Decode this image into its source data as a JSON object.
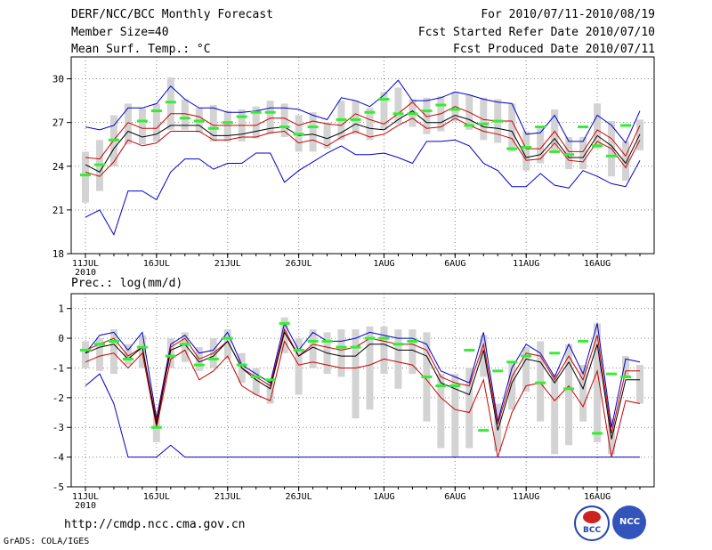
{
  "header": {
    "title": "DERF/NCC/BCC Monthly Forecast",
    "member_size": "Member Size=40",
    "variable": "Mean Surf. Temp.: °C",
    "period": "For 2010/07/11-2010/08/19",
    "started": "Fcst Started Refer Date 2010/07/10",
    "produced": "Fcst Produced Date 2010/07/11"
  },
  "footer": {
    "url": "http://cmdp.ncc.cma.gov.cn",
    "grads": "GrADS: COLA/IGES",
    "logo_bcc": "BCC",
    "logo_ncc": "NCC"
  },
  "colors": {
    "max_line": "#0000cc",
    "min_line": "#0000cc",
    "upper_line": "#cc0000",
    "lower_line": "#cc0000",
    "mean_line": "#000000",
    "observed": "#33ee33",
    "spread_bar": "#d3d3d3"
  },
  "chart_data": [
    {
      "type": "line",
      "title": "Mean Surf. Temp.: °C",
      "x": [
        1,
        2,
        3,
        4,
        5,
        6,
        7,
        8,
        9,
        10,
        11,
        12,
        13,
        14,
        15,
        16,
        17,
        18,
        19,
        20,
        21,
        22,
        23,
        24,
        25,
        26,
        27,
        28,
        29,
        30,
        31,
        32,
        33,
        34,
        35,
        36,
        37,
        38,
        39,
        40
      ],
      "xticks": [
        {
          "day": 1,
          "label": "11JUL",
          "sub": "2010"
        },
        {
          "day": 6,
          "label": "16JUL"
        },
        {
          "day": 11,
          "label": "21JUL"
        },
        {
          "day": 16,
          "label": "26JUL"
        },
        {
          "day": 22,
          "label": "1AUG"
        },
        {
          "day": 27,
          "label": "6AUG"
        },
        {
          "day": 32,
          "label": "11AUG"
        },
        {
          "day": 37,
          "label": "16AUG"
        }
      ],
      "ylim": [
        18,
        31.5
      ],
      "yticks": [
        18,
        21,
        24,
        27,
        30
      ],
      "series": [
        {
          "name": "max",
          "values": [
            26.7,
            26.5,
            26.8,
            28,
            28,
            28.3,
            29.5,
            28.6,
            28,
            28,
            27.7,
            27.7,
            27.8,
            28,
            28,
            27.9,
            27.5,
            27.2,
            28.7,
            28.5,
            28.1,
            28.9,
            29.9,
            28.5,
            28.5,
            28.7,
            29.1,
            28.9,
            28.6,
            28.4,
            28.3,
            26.2,
            26.3,
            27.5,
            25.7,
            25.7,
            27.5,
            26.8,
            25.6,
            27.8
          ]
        },
        {
          "name": "upper",
          "values": [
            24.6,
            24.5,
            25.8,
            27,
            26.6,
            26.6,
            27.6,
            27.6,
            27.4,
            26.8,
            26.8,
            26.8,
            26.8,
            27.3,
            27.3,
            26.8,
            27.1,
            26.9,
            26.8,
            27.6,
            27.2,
            26.9,
            27.6,
            28.4,
            27.4,
            27.6,
            28.1,
            27.7,
            27.2,
            27.1,
            27.1,
            25.2,
            25.2,
            26.4,
            25,
            25,
            26.5,
            25.9,
            24.7,
            26.8
          ]
        },
        {
          "name": "mean",
          "values": [
            24.1,
            23.6,
            25.2,
            26.4,
            26,
            26.2,
            26.8,
            26.8,
            26.8,
            26.1,
            26.1,
            26.2,
            26.4,
            26.6,
            26.7,
            26.1,
            26.2,
            25.9,
            26.3,
            26.9,
            26.6,
            26.5,
            27.2,
            27.8,
            27,
            27,
            27.5,
            27.2,
            26.7,
            26.6,
            26.4,
            24.6,
            24.8,
            25.9,
            24.6,
            24.6,
            26.1,
            25.4,
            24.2,
            26.2
          ]
        },
        {
          "name": "lower",
          "values": [
            23.6,
            23.3,
            24.3,
            25.8,
            25.4,
            25.6,
            26.4,
            26.4,
            26.4,
            25.8,
            25.8,
            26,
            26,
            26.3,
            26.4,
            25.6,
            25.8,
            25.4,
            26,
            26.4,
            26,
            26.2,
            26.8,
            27.3,
            26.6,
            26.7,
            27.3,
            26.8,
            26.4,
            26.2,
            25.9,
            24.4,
            24.5,
            25.6,
            24.4,
            24.3,
            25.7,
            25.2,
            23.9,
            25.8
          ]
        },
        {
          "name": "min",
          "values": [
            20.5,
            21,
            19.3,
            22.3,
            22.3,
            21.7,
            23.6,
            24.5,
            24.5,
            23.8,
            24.2,
            24.2,
            24.9,
            24.9,
            22.9,
            23.7,
            24.3,
            24.9,
            25.4,
            24.8,
            24.8,
            24.9,
            24.6,
            24.2,
            25.7,
            25.7,
            25.8,
            25.4,
            24.2,
            23.7,
            22.6,
            22.6,
            23.5,
            22.7,
            22.5,
            23.7,
            23.3,
            22.8,
            22.6,
            24.4
          ]
        },
        {
          "name": "observed",
          "values": [
            23.4,
            24.1,
            25.8,
            null,
            27.1,
            27.8,
            28.4,
            27.3,
            27.1,
            26.6,
            27,
            27.4,
            27.7,
            27.7,
            26.7,
            26.2,
            26.7,
            null,
            27.2,
            27.2,
            27.7,
            28.6,
            27.6,
            27.6,
            27.8,
            28.2,
            27.9,
            26.8,
            26.9,
            27.1,
            25.2,
            25.3,
            26.7,
            25,
            24.8,
            26.7,
            25.4,
            24.7,
            26.8,
            null
          ]
        },
        {
          "name": "spread_low",
          "values": [
            21.5,
            22.3,
            24,
            25.5,
            25.5,
            25.7,
            26.5,
            26.5,
            26.3,
            25.7,
            25.7,
            25.7,
            25.9,
            26.2,
            26,
            25,
            25,
            25.2,
            25.8,
            26.2,
            25.8,
            26.5,
            26.9,
            26.7,
            26.2,
            26.4,
            27.1,
            26.5,
            25.8,
            25.6,
            25,
            23.7,
            24.2,
            24.9,
            23.8,
            23.8,
            25.2,
            23.3,
            23,
            25.1
          ]
        },
        {
          "name": "spread_high",
          "values": [
            25,
            25.8,
            27.5,
            28.3,
            28,
            28.3,
            30.1,
            28.6,
            28,
            28.2,
            27.8,
            27.9,
            28.1,
            28.5,
            28.3,
            27.5,
            27.7,
            27,
            28.5,
            28.5,
            28,
            29.1,
            29.4,
            28.6,
            28.7,
            28.8,
            29.1,
            28.9,
            28.7,
            28.6,
            28.3,
            26.4,
            26.6,
            27.9,
            26,
            26,
            28.3,
            27.1,
            25.7,
            27.2
          ]
        }
      ]
    },
    {
      "type": "line",
      "title": "Prec.: log(mm/d)",
      "x": [
        1,
        2,
        3,
        4,
        5,
        6,
        7,
        8,
        9,
        10,
        11,
        12,
        13,
        14,
        15,
        16,
        17,
        18,
        19,
        20,
        21,
        22,
        23,
        24,
        25,
        26,
        27,
        28,
        29,
        30,
        31,
        32,
        33,
        34,
        35,
        36,
        37,
        38,
        39,
        40
      ],
      "xticks": [
        {
          "day": 1,
          "label": "11JUL",
          "sub": "2010"
        },
        {
          "day": 6,
          "label": "16JUL"
        },
        {
          "day": 11,
          "label": "21JUL"
        },
        {
          "day": 16,
          "label": "26JUL"
        },
        {
          "day": 22,
          "label": "1AUG"
        },
        {
          "day": 27,
          "label": "6AUG"
        },
        {
          "day": 32,
          "label": "11AUG"
        },
        {
          "day": 37,
          "label": "16AUG"
        }
      ],
      "ylim": [
        -5,
        1.5
      ],
      "yticks": [
        -5,
        -4,
        -3,
        -2,
        -1,
        0,
        1
      ],
      "series": [
        {
          "name": "max",
          "values": [
            -0.5,
            0.1,
            0.2,
            -0.4,
            0.2,
            -2.7,
            -0.2,
            0.1,
            -0.5,
            -0.4,
            0.2,
            -0.9,
            -1.2,
            -1.5,
            0.5,
            -0.4,
            0.2,
            -0.1,
            -0.1,
            0,
            0.2,
            0.1,
            0,
            0,
            -0.2,
            -1.1,
            -1.3,
            -1.5,
            0.2,
            -2.8,
            -1,
            -0.2,
            -0.5,
            -1.3,
            -0.2,
            -1.2,
            0.5,
            -3,
            -0.7,
            -0.8
          ]
        },
        {
          "name": "upper",
          "values": [
            -0.4,
            -0.2,
            0,
            -0.6,
            -0.3,
            -2.8,
            -0.3,
            0,
            -0.7,
            -0.5,
            -0.1,
            -1,
            -1.3,
            -1.6,
            0.3,
            -0.6,
            -0.2,
            -0.3,
            -0.4,
            -0.3,
            0,
            -0.1,
            -0.2,
            -0.2,
            -0.4,
            -1.3,
            -1.5,
            -1.6,
            -0.2,
            -2.9,
            -1.3,
            -0.5,
            -0.6,
            -1.4,
            -0.6,
            -1.4,
            0.1,
            -3.2,
            -1.1,
            -1.1
          ]
        },
        {
          "name": "mean",
          "values": [
            -0.5,
            -0.3,
            -0.2,
            -0.7,
            -0.3,
            -2.9,
            -0.4,
            -0.2,
            -0.8,
            -0.6,
            -0.1,
            -1,
            -1.4,
            -1.7,
            0.2,
            -0.6,
            -0.3,
            -0.5,
            -0.6,
            -0.6,
            -0.2,
            -0.2,
            -0.4,
            -0.4,
            -0.6,
            -1.5,
            -1.7,
            -1.9,
            -0.4,
            -3.1,
            -1.5,
            -0.7,
            -0.8,
            -1.5,
            -0.8,
            -1.7,
            -0.2,
            -3.4,
            -1.4,
            -1.4
          ]
        },
        {
          "name": "lower",
          "values": [
            -0.8,
            -0.6,
            -0.5,
            -1,
            -0.5,
            -3,
            -0.7,
            -0.4,
            -1.4,
            -1.1,
            -0.6,
            -1.6,
            -1.9,
            -2.1,
            -0.1,
            -0.9,
            -0.8,
            -0.9,
            -1,
            -1,
            -0.9,
            -0.7,
            -0.8,
            -0.9,
            -1.4,
            -2,
            -2.4,
            -2.5,
            -1.4,
            -4,
            -2.5,
            -1.6,
            -1.5,
            -2.1,
            -1.6,
            -2.3,
            -1.1,
            -4,
            -2.1,
            -2.2
          ]
        },
        {
          "name": "min",
          "values": [
            -1.6,
            -1.2,
            -2.2,
            -4,
            -4,
            -4,
            -3.6,
            -4,
            -4,
            -4,
            -4,
            -4,
            -4,
            -4,
            -4,
            -4,
            -4,
            -4,
            -4,
            -4,
            -4,
            -4,
            -4,
            -4,
            -4,
            -4,
            -4,
            -4,
            -4,
            -4,
            -4,
            -4,
            -4,
            -4,
            -4,
            -4,
            -4,
            -4,
            -4,
            -4
          ]
        },
        {
          "name": "observed",
          "values": [
            -0.4,
            -0.2,
            -0.1,
            -0.7,
            -0.3,
            -3,
            -0.6,
            -0.2,
            -0.9,
            -0.7,
            0,
            -0.9,
            -1.3,
            -1.4,
            0.5,
            -0.4,
            -0.1,
            -0.1,
            -0.3,
            -0.3,
            0,
            0,
            -0.2,
            -0.1,
            -1.3,
            -1.6,
            -1.6,
            -0.4,
            -3.1,
            -1.1,
            -0.8,
            -0.6,
            -1.5,
            -0.5,
            -1.7,
            -0.1,
            -3.2,
            -1.2,
            -1.3,
            null
          ]
        },
        {
          "name": "spread_low",
          "values": [
            -1,
            -1.1,
            -1.2,
            -0.9,
            -1,
            -3.5,
            -1,
            -0.8,
            -1.1,
            -1,
            -0.7,
            -1.5,
            -1.9,
            -2.2,
            -0.5,
            -1.9,
            -1,
            -1.2,
            -1.3,
            -2.7,
            -2.4,
            -1.2,
            -1.7,
            -1.2,
            -2.8,
            -3.7,
            -4,
            -3.7,
            -1.3,
            -3.8,
            -2.4,
            -1.8,
            -2.8,
            -3.9,
            -3.6,
            -2.8,
            -3.5,
            -3.9,
            -1.3,
            -2.2
          ]
        },
        {
          "name": "spread_high",
          "values": [
            -0.1,
            0,
            0.3,
            -0.2,
            0.1,
            -2.5,
            0,
            0.2,
            -0.3,
            0,
            0.3,
            -0.5,
            -1,
            -1.4,
            0.7,
            0,
            0.3,
            0.2,
            0.3,
            0.3,
            0.4,
            0.4,
            0.3,
            0.3,
            0.2,
            -1.2,
            -1.2,
            -1,
            0.1,
            -2.2,
            -0.8,
            -0.3,
            -0.1,
            -1.2,
            -0.2,
            -0.9,
            0.5,
            -2.7,
            -0.6,
            -0.9
          ]
        }
      ]
    }
  ]
}
